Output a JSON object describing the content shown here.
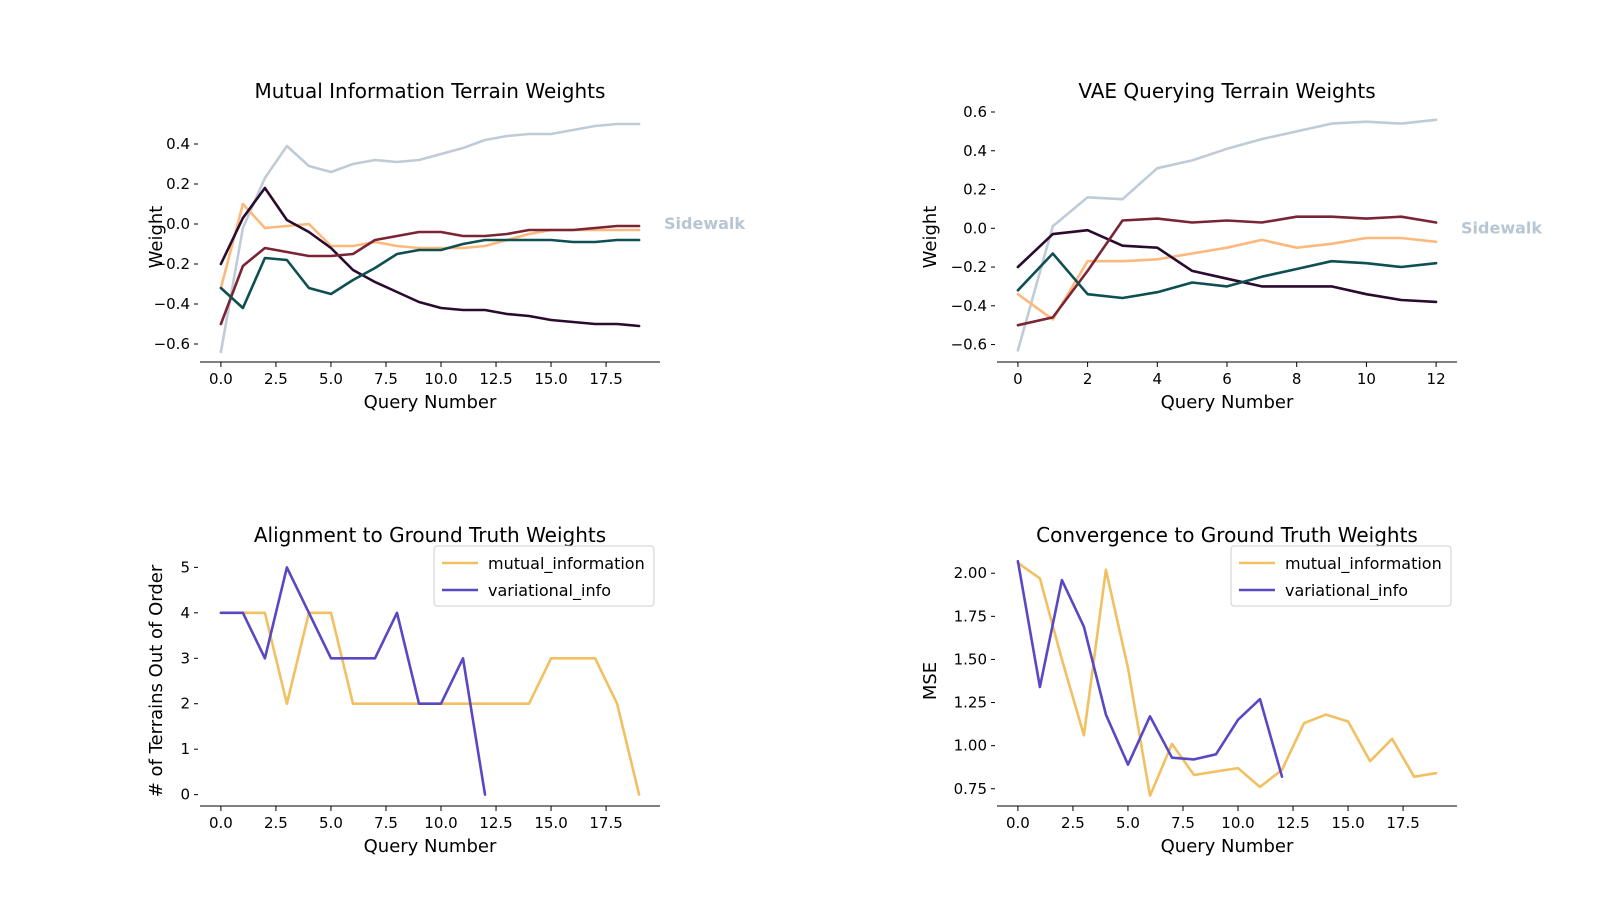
{
  "chart_data": [
    {
      "type": "line",
      "title": "Mutual Information Terrain Weights",
      "xlabel": "Query Number",
      "ylabel": "Weight",
      "xlim": [
        -0.95,
        19.95
      ],
      "ylim": [
        -0.69,
        0.56
      ],
      "xticks": [
        0,
        2.5,
        5,
        7.5,
        10,
        12.5,
        15,
        17.5
      ],
      "xtick_labels": [
        "0.0",
        "2.5",
        "5.0",
        "7.5",
        "10.0",
        "12.5",
        "15.0",
        "17.5"
      ],
      "yticks": [
        -0.6,
        -0.4,
        -0.2,
        0,
        0.2,
        0.4
      ],
      "ytick_labels": [
        "−0.6",
        "−0.4",
        "−0.2",
        "0.0",
        "0.2",
        "0.4"
      ],
      "annotation": "Sidewalk",
      "annotation_color": "#b8c6d4",
      "legend": null,
      "x": [
        0,
        1,
        2,
        3,
        4,
        5,
        6,
        7,
        8,
        9,
        10,
        11,
        12,
        13,
        14,
        15,
        16,
        17,
        18,
        19
      ],
      "series": [
        {
          "color": "#bfccd8",
          "values": [
            -0.64,
            -0.02,
            0.23,
            0.39,
            0.29,
            0.26,
            0.3,
            0.32,
            0.31,
            0.32,
            0.35,
            0.38,
            0.42,
            0.44,
            0.45,
            0.45,
            0.47,
            0.49,
            0.5,
            0.5
          ]
        },
        {
          "color": "#fdb97d",
          "values": [
            -0.32,
            0.1,
            -0.02,
            -0.01,
            0.0,
            -0.11,
            -0.11,
            -0.09,
            -0.11,
            -0.12,
            -0.12,
            -0.12,
            -0.11,
            -0.08,
            -0.05,
            -0.03,
            -0.03,
            -0.03,
            -0.03,
            -0.03
          ]
        },
        {
          "color": "#2a0a2e",
          "values": [
            -0.2,
            0.03,
            0.18,
            0.02,
            -0.04,
            -0.12,
            -0.23,
            -0.29,
            -0.34,
            -0.39,
            -0.42,
            -0.43,
            -0.43,
            -0.45,
            -0.46,
            -0.48,
            -0.49,
            -0.5,
            -0.5,
            -0.51
          ]
        },
        {
          "color": "#7a2535",
          "values": [
            -0.5,
            -0.21,
            -0.12,
            -0.14,
            -0.16,
            -0.16,
            -0.15,
            -0.08,
            -0.06,
            -0.04,
            -0.04,
            -0.06,
            -0.06,
            -0.05,
            -0.03,
            -0.03,
            -0.03,
            -0.02,
            -0.01,
            -0.01
          ]
        },
        {
          "color": "#0e4f52",
          "values": [
            -0.32,
            -0.42,
            -0.17,
            -0.18,
            -0.32,
            -0.35,
            -0.28,
            -0.22,
            -0.15,
            -0.13,
            -0.13,
            -0.1,
            -0.08,
            -0.08,
            -0.08,
            -0.08,
            -0.09,
            -0.09,
            -0.08,
            -0.08
          ]
        }
      ]
    },
    {
      "type": "line",
      "title": "VAE Querying Terrain Weights",
      "xlabel": "Query Number",
      "ylabel": "Weight",
      "xlim": [
        -0.6,
        12.6
      ],
      "ylim": [
        -0.69,
        0.6
      ],
      "xticks": [
        0,
        2,
        4,
        6,
        8,
        10,
        12
      ],
      "xtick_labels": [
        "0",
        "2",
        "4",
        "6",
        "8",
        "10",
        "12"
      ],
      "yticks": [
        -0.6,
        -0.4,
        -0.2,
        0,
        0.2,
        0.4,
        0.6
      ],
      "ytick_labels": [
        "−0.6",
        "−0.4",
        "−0.2",
        "0.0",
        "0.2",
        "0.4",
        "0.6"
      ],
      "annotation": "Sidewalk",
      "annotation_color": "#b8c6d4",
      "legend": null,
      "x": [
        0,
        1,
        2,
        3,
        4,
        5,
        6,
        7,
        8,
        9,
        10,
        11,
        12
      ],
      "series": [
        {
          "color": "#bfccd8",
          "values": [
            -0.63,
            0.01,
            0.16,
            0.15,
            0.31,
            0.35,
            0.41,
            0.46,
            0.5,
            0.54,
            0.55,
            0.54,
            0.56
          ]
        },
        {
          "color": "#fdb97d",
          "values": [
            -0.34,
            -0.47,
            -0.17,
            -0.17,
            -0.16,
            -0.13,
            -0.1,
            -0.06,
            -0.1,
            -0.08,
            -0.05,
            -0.05,
            -0.07
          ]
        },
        {
          "color": "#2a0a2e",
          "values": [
            -0.2,
            -0.03,
            -0.01,
            -0.09,
            -0.1,
            -0.22,
            -0.26,
            -0.3,
            -0.3,
            -0.3,
            -0.34,
            -0.37,
            -0.38
          ]
        },
        {
          "color": "#7a2535",
          "values": [
            -0.5,
            -0.46,
            -0.22,
            0.04,
            0.05,
            0.03,
            0.04,
            0.03,
            0.06,
            0.06,
            0.05,
            0.06,
            0.03
          ]
        },
        {
          "color": "#0e4f52",
          "values": [
            -0.32,
            -0.13,
            -0.34,
            -0.36,
            -0.33,
            -0.28,
            -0.3,
            -0.25,
            -0.21,
            -0.17,
            -0.18,
            -0.2,
            -0.18
          ]
        }
      ]
    },
    {
      "type": "line",
      "title": "Alignment to Ground Truth Weights",
      "xlabel": "Query Number",
      "ylabel": "# of Terrains Out of Order",
      "xlim": [
        -0.95,
        19.95
      ],
      "ylim": [
        -0.25,
        5.25
      ],
      "xticks": [
        0,
        2.5,
        5,
        7.5,
        10,
        12.5,
        15,
        17.5
      ],
      "xtick_labels": [
        "0.0",
        "2.5",
        "5.0",
        "7.5",
        "10.0",
        "12.5",
        "15.0",
        "17.5"
      ],
      "yticks": [
        0,
        1,
        2,
        3,
        4,
        5
      ],
      "ytick_labels": [
        "0",
        "1",
        "2",
        "3",
        "4",
        "5"
      ],
      "annotation": "",
      "legend": "upper-right",
      "series": [
        {
          "name": "mutual_information",
          "color": "#f2c061",
          "x": [
            0,
            1,
            2,
            3,
            4,
            5,
            6,
            7,
            8,
            9,
            10,
            11,
            12,
            13,
            14,
            15,
            16,
            17,
            18,
            19
          ],
          "values": [
            4,
            4,
            4,
            2,
            4,
            4,
            2,
            2,
            2,
            2,
            2,
            2,
            2,
            2,
            2,
            3,
            3,
            3,
            2,
            0
          ]
        },
        {
          "name": "variational_info",
          "color": "#5848c4",
          "x": [
            0,
            1,
            2,
            3,
            4,
            5,
            6,
            7,
            8,
            9,
            10,
            11,
            12
          ],
          "values": [
            4,
            4,
            3,
            5,
            4,
            3,
            3,
            3,
            4,
            2,
            2,
            3,
            0
          ]
        }
      ]
    },
    {
      "type": "line",
      "title": "Convergence to Ground Truth Weights",
      "xlabel": "Query Number",
      "ylabel": "MSE",
      "xlim": [
        -0.95,
        19.95
      ],
      "ylim": [
        0.65,
        2.1
      ],
      "xticks": [
        0,
        2.5,
        5,
        7.5,
        10,
        12.5,
        15,
        17.5
      ],
      "xtick_labels": [
        "0.0",
        "2.5",
        "5.0",
        "7.5",
        "10.0",
        "12.5",
        "15.0",
        "17.5"
      ],
      "yticks": [
        0.75,
        1.0,
        1.25,
        1.5,
        1.75,
        2.0
      ],
      "ytick_labels": [
        "0.75",
        "1.00",
        "1.25",
        "1.50",
        "1.75",
        "2.00"
      ],
      "annotation": "",
      "legend": "upper-right",
      "series": [
        {
          "name": "mutual_information",
          "color": "#f2c061",
          "x": [
            0,
            1,
            2,
            3,
            4,
            5,
            6,
            7,
            8,
            9,
            10,
            11,
            12,
            13,
            14,
            15,
            16,
            17,
            18,
            19
          ],
          "values": [
            2.06,
            1.97,
            1.5,
            1.06,
            2.02,
            1.45,
            0.71,
            1.01,
            0.83,
            0.85,
            0.87,
            0.76,
            0.86,
            1.13,
            1.18,
            1.14,
            0.91,
            1.04,
            0.82,
            0.84
          ]
        },
        {
          "name": "variational_info",
          "color": "#5848c4",
          "x": [
            0,
            1,
            2,
            3,
            4,
            5,
            6,
            7,
            8,
            9,
            10,
            11,
            12
          ],
          "values": [
            2.07,
            1.34,
            1.96,
            1.69,
            1.18,
            0.89,
            1.17,
            0.93,
            0.92,
            0.95,
            1.15,
            1.27,
            0.82
          ]
        }
      ]
    }
  ]
}
